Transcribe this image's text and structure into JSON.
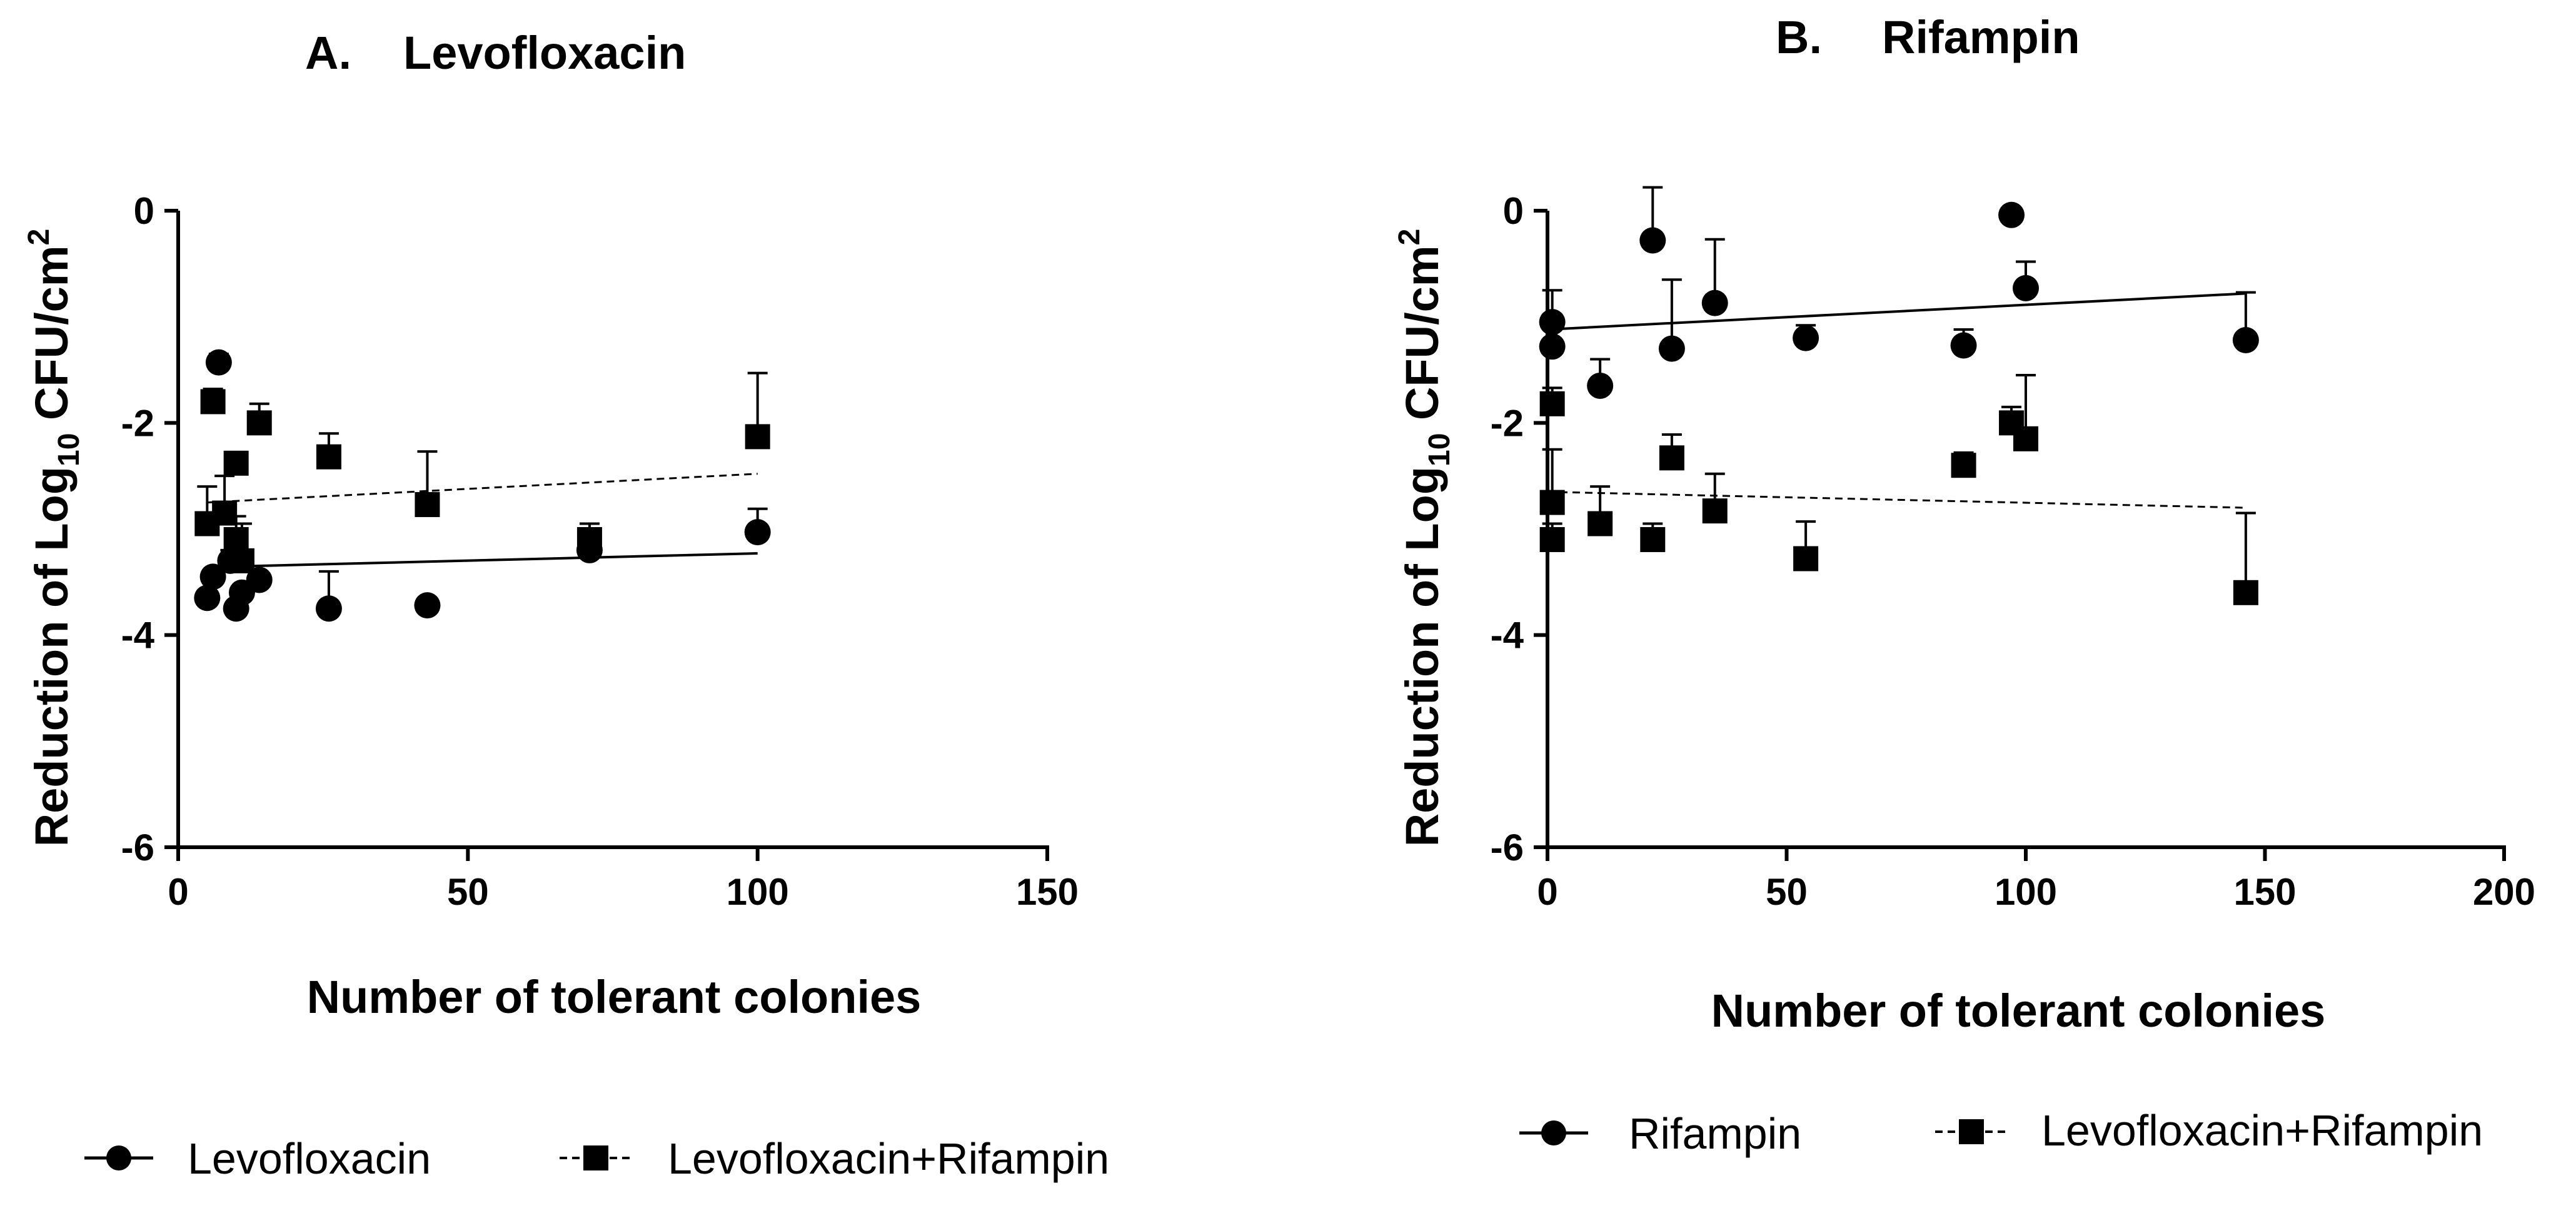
{
  "chart_data": [
    {
      "type": "scatter",
      "panel": "A.",
      "title": "Levofloxacin",
      "xlabel": "Number of tolerant colonies",
      "ylabel_prefix": "Reduction of Log",
      "ylabel_sub": "10",
      "ylabel_mid": " CFU/cm",
      "ylabel_sup": "2",
      "xlim": [
        0,
        150
      ],
      "ylim": [
        -6,
        0
      ],
      "xticks": [
        0,
        50,
        100,
        150
      ],
      "yticks": [
        0,
        -2,
        -4,
        -6
      ],
      "series": [
        {
          "name": "Levofloxacin",
          "marker": "circle",
          "line": "solid",
          "fit": [
            [
              5,
              -3.36
            ],
            [
              100,
              -3.23
            ]
          ],
          "points": [
            {
              "x": 5,
              "y": -3.65,
              "err": 0.05
            },
            {
              "x": 6,
              "y": -3.45,
              "err": 0.05
            },
            {
              "x": 7,
              "y": -1.43,
              "err": 0.08
            },
            {
              "x": 9,
              "y": -3.3,
              "err": 0.1
            },
            {
              "x": 10,
              "y": -3.75,
              "err": 0.06
            },
            {
              "x": 11,
              "y": -3.6,
              "err": 0.06
            },
            {
              "x": 14,
              "y": -3.48,
              "err": 0.06
            },
            {
              "x": 26,
              "y": -3.75,
              "err": 0.35
            },
            {
              "x": 43,
              "y": -3.72,
              "err": 0.04
            },
            {
              "x": 71,
              "y": -3.2,
              "err": 0.05
            },
            {
              "x": 100,
              "y": -3.03,
              "err": 0.22
            }
          ]
        },
        {
          "name": "Levofloxacin+Rifampin",
          "marker": "square",
          "line": "dashed",
          "fit": [
            [
              5,
              -2.75
            ],
            [
              100,
              -2.48
            ]
          ],
          "points": [
            {
              "x": 5,
              "y": -2.95,
              "err": 0.35
            },
            {
              "x": 6,
              "y": -1.8,
              "err": 0.12
            },
            {
              "x": 8,
              "y": -2.85,
              "err": 0.35
            },
            {
              "x": 10,
              "y": -3.1,
              "err": 0.22
            },
            {
              "x": 10,
              "y": -2.38,
              "err": 0.1
            },
            {
              "x": 11,
              "y": -3.3,
              "err": 0.35
            },
            {
              "x": 14,
              "y": -2.0,
              "err": 0.18
            },
            {
              "x": 26,
              "y": -2.32,
              "err": 0.22
            },
            {
              "x": 43,
              "y": -2.77,
              "err": 0.5
            },
            {
              "x": 71,
              "y": -3.1,
              "err": 0.15
            },
            {
              "x": 100,
              "y": -2.13,
              "err": 0.6
            }
          ]
        }
      ]
    },
    {
      "type": "scatter",
      "panel": "B.",
      "title": "Rifampin",
      "xlabel": "Number of tolerant colonies",
      "ylabel_prefix": "Reduction of Log",
      "ylabel_sub": "10",
      "ylabel_mid": " CFU/cm",
      "ylabel_sup": "2",
      "xlim": [
        0,
        200
      ],
      "ylim": [
        -6,
        0
      ],
      "xticks": [
        0,
        50,
        100,
        150,
        200
      ],
      "yticks": [
        0,
        -2,
        -4,
        -6
      ],
      "series": [
        {
          "name": "Rifampin",
          "marker": "circle",
          "line": "solid",
          "fit": [
            [
              0,
              -1.12
            ],
            [
              146,
              -0.78
            ]
          ],
          "points": [
            {
              "x": 1,
              "y": -1.05,
              "err": 0.3
            },
            {
              "x": 1,
              "y": -1.28,
              "err": 0.3
            },
            {
              "x": 11,
              "y": -1.65,
              "err": 0.25
            },
            {
              "x": 22,
              "y": -0.28,
              "err": 0.5
            },
            {
              "x": 26,
              "y": -1.3,
              "err": 0.65
            },
            {
              "x": 35,
              "y": -0.87,
              "err": 0.6
            },
            {
              "x": 54,
              "y": -1.2,
              "err": 0.12
            },
            {
              "x": 87,
              "y": -1.27,
              "err": 0.15
            },
            {
              "x": 97,
              "y": -0.04,
              "err": 0.0
            },
            {
              "x": 100,
              "y": -0.73,
              "err": 0.25
            },
            {
              "x": 146,
              "y": -1.22,
              "err": 0.45
            }
          ]
        },
        {
          "name": "Levofloxacin+Rifampin",
          "marker": "square",
          "line": "dashed",
          "fit": [
            [
              0,
              -2.65
            ],
            [
              146,
              -2.8
            ]
          ],
          "points": [
            {
              "x": 1,
              "y": -1.82,
              "err": 0.15
            },
            {
              "x": 1,
              "y": -2.75,
              "err": 0.5
            },
            {
              "x": 1,
              "y": -3.1,
              "err": 0.15
            },
            {
              "x": 11,
              "y": -2.95,
              "err": 0.35
            },
            {
              "x": 22,
              "y": -3.1,
              "err": 0.15
            },
            {
              "x": 26,
              "y": -2.33,
              "err": 0.22
            },
            {
              "x": 35,
              "y": -2.83,
              "err": 0.35
            },
            {
              "x": 54,
              "y": -3.28,
              "err": 0.35
            },
            {
              "x": 87,
              "y": -2.4,
              "err": 0.12
            },
            {
              "x": 97,
              "y": -2.0,
              "err": 0.15
            },
            {
              "x": 100,
              "y": -2.15,
              "err": 0.6
            },
            {
              "x": 146,
              "y": -3.6,
              "err": 0.75
            }
          ]
        }
      ]
    }
  ]
}
